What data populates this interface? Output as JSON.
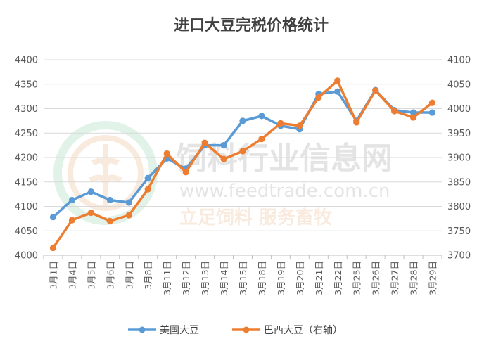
{
  "watermark": {
    "name": "饲料行业信息网",
    "url": "www.feedtrade.com.cn",
    "slogan": "立足饲料  服务畜牧"
  },
  "colors": {
    "us": "#5B9BD5",
    "brazil": "#ED7D31",
    "grid": "#D9D9D9",
    "text": "#595959"
  },
  "chart_data": {
    "type": "line",
    "title": "进口大豆完税价格统计",
    "categories": [
      "3月1日",
      "3月4日",
      "3月5日",
      "3月6日",
      "3月7日",
      "3月8日",
      "3月11日",
      "3月12日",
      "3月13日",
      "3月14日",
      "3月15日",
      "3月18日",
      "3月19日",
      "3月20日",
      "3月21日",
      "3月22日",
      "3月25日",
      "3月26日",
      "3月27日",
      "3月28日",
      "3月29日"
    ],
    "y_left": {
      "min": 4000,
      "max": 4400,
      "step": 50,
      "ticks": [
        "4000",
        "4050",
        "4100",
        "4150",
        "4200",
        "4250",
        "4300",
        "4350",
        "4400"
      ]
    },
    "y_right": {
      "min": 3700,
      "max": 4100,
      "step": 50,
      "ticks": [
        "3700",
        "3750",
        "3800",
        "3850",
        "3900",
        "3950",
        "4000",
        "4050",
        "4100"
      ]
    },
    "grid": true,
    "legend_position": "bottom",
    "series": [
      {
        "name": "美国大豆",
        "axis": "left",
        "color": "#5B9BD5",
        "values": [
          4078,
          4113,
          4130,
          4113,
          4108,
          4158,
          4198,
          4177,
          4225,
          4225,
          4275,
          4285,
          4265,
          4258,
          4330,
          4335,
          4275,
          4338,
          4297,
          4292,
          4292
        ]
      },
      {
        "name": "巴西大豆（右轴）",
        "axis": "right",
        "color": "#ED7D31",
        "values": [
          3715,
          3772,
          3787,
          3770,
          3782,
          3835,
          3908,
          3870,
          3930,
          3897,
          3913,
          3938,
          3970,
          3965,
          4023,
          4057,
          3972,
          4037,
          3995,
          3982,
          4012
        ]
      }
    ]
  }
}
